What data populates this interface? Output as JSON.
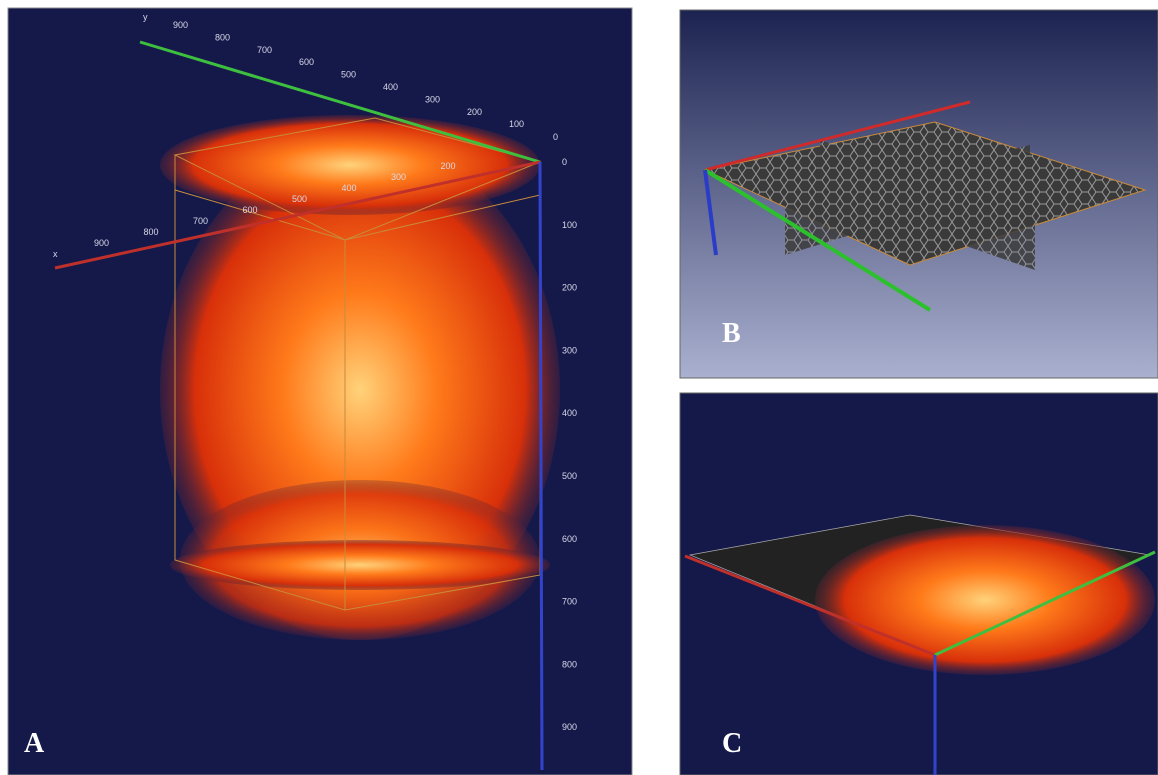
{
  "panels": [
    {
      "label": "A",
      "axes": {
        "y": {
          "name": "y",
          "ticks": [
            900,
            800,
            700,
            600,
            500,
            400,
            300,
            200,
            100,
            0
          ]
        },
        "x": {
          "name": "x",
          "ticks": [
            900,
            800,
            700,
            600,
            500,
            400,
            300,
            200
          ]
        },
        "z": {
          "ticks": [
            0,
            100,
            200,
            300,
            400,
            500,
            600,
            700,
            800,
            900
          ]
        }
      }
    },
    {
      "label": "B"
    },
    {
      "label": "C"
    }
  ]
}
